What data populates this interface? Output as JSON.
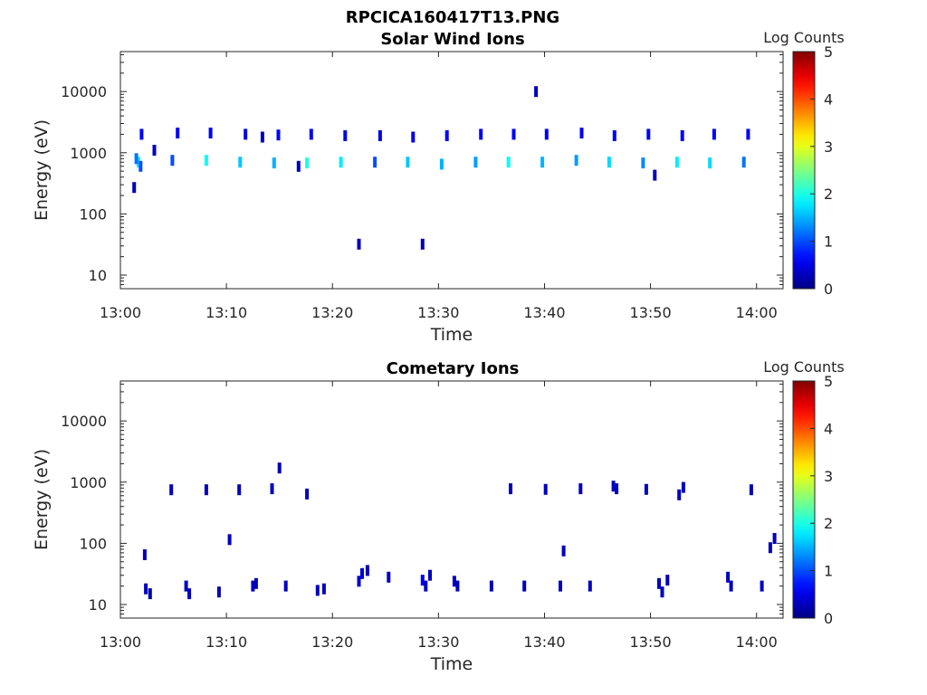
{
  "figure": {
    "filename_title": "RPCICA160417T13.PNG"
  },
  "chart_data": [
    {
      "type": "heatmap",
      "title": "Solar Wind Ions",
      "xlabel": "Time",
      "ylabel": "Energy (eV)",
      "x_ticks": [
        "13:00",
        "13:10",
        "13:20",
        "13:30",
        "13:40",
        "13:50",
        "14:00"
      ],
      "x_range_min": [
        0,
        62.5
      ],
      "y_ticks": [
        10,
        100,
        1000,
        10000
      ],
      "y_tick_labels": [
        "10",
        "100",
        "1000",
        "10000"
      ],
      "y_scale": "log",
      "ylim": [
        6,
        45000
      ],
      "colorbar": {
        "label": "Log Counts",
        "range": [
          0,
          5
        ],
        "ticks": [
          "0",
          "1",
          "2",
          "3",
          "4",
          "5"
        ],
        "colormap": "jet"
      },
      "grid": false,
      "main_beam_times_min": [
        1.7,
        4.9,
        8.1,
        11.3,
        14.5,
        17.6,
        20.8,
        24.0,
        27.1,
        30.3,
        33.5,
        36.6,
        39.8,
        43.0,
        46.1,
        49.3,
        52.5,
        55.6,
        58.8
      ],
      "points": [
        {
          "t": 1.7,
          "e": 700,
          "v": 1.8
        },
        {
          "t": 1.5,
          "e": 800,
          "v": 1.2
        },
        {
          "t": 1.9,
          "e": 600,
          "v": 1.0
        },
        {
          "t": 2.0,
          "e": 2000,
          "v": 0.6
        },
        {
          "t": 1.3,
          "e": 270,
          "v": 0.3
        },
        {
          "t": 3.2,
          "e": 1100,
          "v": 0.3
        },
        {
          "t": 4.9,
          "e": 750,
          "v": 1.0
        },
        {
          "t": 5.4,
          "e": 2100,
          "v": 0.6
        },
        {
          "t": 8.1,
          "e": 750,
          "v": 1.9
        },
        {
          "t": 8.5,
          "e": 2100,
          "v": 0.6
        },
        {
          "t": 11.3,
          "e": 700,
          "v": 1.6
        },
        {
          "t": 11.8,
          "e": 2000,
          "v": 0.5
        },
        {
          "t": 13.4,
          "e": 1800,
          "v": 0.3
        },
        {
          "t": 14.5,
          "e": 680,
          "v": 1.5
        },
        {
          "t": 14.9,
          "e": 1950,
          "v": 0.6
        },
        {
          "t": 17.6,
          "e": 680,
          "v": 2.0
        },
        {
          "t": 18.0,
          "e": 2000,
          "v": 0.6
        },
        {
          "t": 16.8,
          "e": 600,
          "v": 0.3
        },
        {
          "t": 20.8,
          "e": 700,
          "v": 1.8
        },
        {
          "t": 21.2,
          "e": 1900,
          "v": 0.5
        },
        {
          "t": 24.0,
          "e": 700,
          "v": 1.0
        },
        {
          "t": 24.5,
          "e": 1900,
          "v": 0.5
        },
        {
          "t": 27.1,
          "e": 700,
          "v": 1.6
        },
        {
          "t": 27.6,
          "e": 1800,
          "v": 0.5
        },
        {
          "t": 30.3,
          "e": 650,
          "v": 1.5
        },
        {
          "t": 30.8,
          "e": 1900,
          "v": 0.6
        },
        {
          "t": 33.5,
          "e": 700,
          "v": 1.4
        },
        {
          "t": 34.0,
          "e": 2000,
          "v": 0.6
        },
        {
          "t": 36.6,
          "e": 700,
          "v": 1.9
        },
        {
          "t": 37.1,
          "e": 2000,
          "v": 0.6
        },
        {
          "t": 39.8,
          "e": 700,
          "v": 1.5
        },
        {
          "t": 40.2,
          "e": 2000,
          "v": 0.6
        },
        {
          "t": 39.2,
          "e": 10000,
          "v": 0.3
        },
        {
          "t": 43.0,
          "e": 750,
          "v": 1.4
        },
        {
          "t": 43.5,
          "e": 2100,
          "v": 0.6
        },
        {
          "t": 46.1,
          "e": 700,
          "v": 1.7
        },
        {
          "t": 46.6,
          "e": 1900,
          "v": 0.6
        },
        {
          "t": 49.3,
          "e": 680,
          "v": 1.3
        },
        {
          "t": 49.8,
          "e": 2000,
          "v": 0.6
        },
        {
          "t": 50.4,
          "e": 430,
          "v": 0.3
        },
        {
          "t": 52.5,
          "e": 700,
          "v": 1.8
        },
        {
          "t": 53.0,
          "e": 1900,
          "v": 0.6
        },
        {
          "t": 55.6,
          "e": 680,
          "v": 1.7
        },
        {
          "t": 56.0,
          "e": 2000,
          "v": 0.6
        },
        {
          "t": 58.8,
          "e": 700,
          "v": 1.2
        },
        {
          "t": 59.2,
          "e": 2000,
          "v": 0.6
        },
        {
          "t": 22.5,
          "e": 32,
          "v": 0.3
        },
        {
          "t": 28.5,
          "e": 32,
          "v": 0.3
        }
      ]
    },
    {
      "type": "heatmap",
      "title": "Cometary Ions",
      "xlabel": "Time",
      "ylabel": "Energy (eV)",
      "x_ticks": [
        "13:00",
        "13:10",
        "13:20",
        "13:30",
        "13:40",
        "13:50",
        "14:00"
      ],
      "x_range_min": [
        0,
        62.5
      ],
      "y_ticks": [
        10,
        100,
        1000,
        10000
      ],
      "y_tick_labels": [
        "10",
        "100",
        "1000",
        "10000"
      ],
      "y_scale": "log",
      "ylim": [
        6,
        45000
      ],
      "colorbar": {
        "label": "Log Counts",
        "range": [
          0,
          5
        ],
        "ticks": [
          "0",
          "1",
          "2",
          "3",
          "4",
          "5"
        ],
        "colormap": "jet"
      },
      "grid": false,
      "points": [
        {
          "t": 2.3,
          "e": 65,
          "v": 0.3
        },
        {
          "t": 2.4,
          "e": 18,
          "v": 0.3
        },
        {
          "t": 2.8,
          "e": 15,
          "v": 0.2
        },
        {
          "t": 4.8,
          "e": 750,
          "v": 0.3
        },
        {
          "t": 6.2,
          "e": 20,
          "v": 0.3
        },
        {
          "t": 6.5,
          "e": 15,
          "v": 0.3
        },
        {
          "t": 8.1,
          "e": 750,
          "v": 0.3
        },
        {
          "t": 9.3,
          "e": 16,
          "v": 0.3
        },
        {
          "t": 10.3,
          "e": 115,
          "v": 0.3
        },
        {
          "t": 11.2,
          "e": 750,
          "v": 0.3
        },
        {
          "t": 12.5,
          "e": 20,
          "v": 0.3
        },
        {
          "t": 12.8,
          "e": 22,
          "v": 0.3
        },
        {
          "t": 14.3,
          "e": 780,
          "v": 0.3
        },
        {
          "t": 15.0,
          "e": 1700,
          "v": 0.3
        },
        {
          "t": 15.6,
          "e": 20,
          "v": 0.3
        },
        {
          "t": 17.6,
          "e": 640,
          "v": 0.3
        },
        {
          "t": 18.6,
          "e": 17,
          "v": 0.3
        },
        {
          "t": 19.2,
          "e": 18,
          "v": 0.3
        },
        {
          "t": 22.5,
          "e": 24,
          "v": 0.4
        },
        {
          "t": 22.8,
          "e": 32,
          "v": 0.4
        },
        {
          "t": 23.3,
          "e": 36,
          "v": 0.3
        },
        {
          "t": 25.3,
          "e": 28,
          "v": 0.3
        },
        {
          "t": 28.5,
          "e": 25,
          "v": 0.6
        },
        {
          "t": 28.8,
          "e": 20,
          "v": 0.3
        },
        {
          "t": 29.2,
          "e": 30,
          "v": 0.3
        },
        {
          "t": 31.5,
          "e": 24,
          "v": 0.3
        },
        {
          "t": 31.8,
          "e": 20,
          "v": 0.3
        },
        {
          "t": 35.0,
          "e": 20,
          "v": 0.3
        },
        {
          "t": 36.8,
          "e": 780,
          "v": 0.3
        },
        {
          "t": 38.1,
          "e": 20,
          "v": 0.3
        },
        {
          "t": 40.1,
          "e": 760,
          "v": 0.3
        },
        {
          "t": 41.5,
          "e": 20,
          "v": 0.3
        },
        {
          "t": 41.8,
          "e": 75,
          "v": 0.3
        },
        {
          "t": 43.4,
          "e": 780,
          "v": 0.3
        },
        {
          "t": 44.3,
          "e": 20,
          "v": 0.3
        },
        {
          "t": 46.5,
          "e": 860,
          "v": 0.3
        },
        {
          "t": 46.8,
          "e": 780,
          "v": 0.3
        },
        {
          "t": 49.6,
          "e": 760,
          "v": 0.3
        },
        {
          "t": 50.8,
          "e": 22,
          "v": 0.3
        },
        {
          "t": 51.1,
          "e": 16,
          "v": 0.3
        },
        {
          "t": 51.6,
          "e": 25,
          "v": 0.3
        },
        {
          "t": 52.7,
          "e": 620,
          "v": 0.3
        },
        {
          "t": 53.1,
          "e": 820,
          "v": 0.3
        },
        {
          "t": 57.3,
          "e": 28,
          "v": 0.3
        },
        {
          "t": 57.6,
          "e": 20,
          "v": 0.3
        },
        {
          "t": 59.5,
          "e": 750,
          "v": 0.3
        },
        {
          "t": 60.5,
          "e": 20,
          "v": 0.3
        },
        {
          "t": 61.3,
          "e": 85,
          "v": 0.3
        },
        {
          "t": 61.7,
          "e": 120,
          "v": 0.3
        }
      ]
    }
  ]
}
